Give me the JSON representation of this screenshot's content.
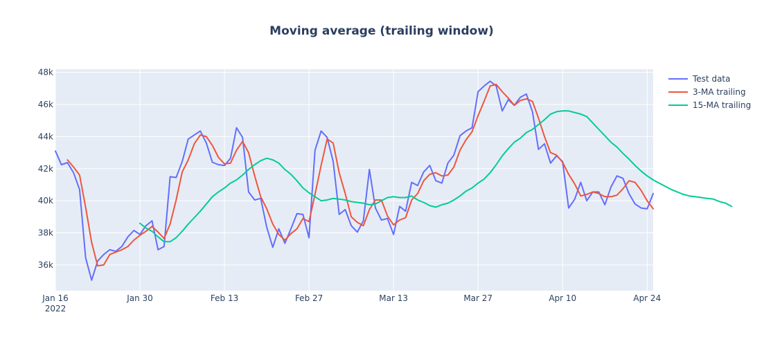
{
  "chart_data": {
    "type": "line",
    "title": "Moving average (trailing window)",
    "xlabel": "",
    "ylabel": "",
    "x_start": "2022-01-16",
    "x_range": [
      "2022-01-16",
      "2022-04-25"
    ],
    "ylim": [
      34400,
      48200
    ],
    "grid": true,
    "legend_position": "top-right",
    "x_ticks": [
      {
        "date": "2022-01-16",
        "label": "Jan 16",
        "sublabel": "2022"
      },
      {
        "date": "2022-01-30",
        "label": "Jan 30",
        "sublabel": ""
      },
      {
        "date": "2022-02-13",
        "label": "Feb 13",
        "sublabel": ""
      },
      {
        "date": "2022-02-27",
        "label": "Feb 27",
        "sublabel": ""
      },
      {
        "date": "2022-03-13",
        "label": "Mar 13",
        "sublabel": ""
      },
      {
        "date": "2022-03-27",
        "label": "Mar 27",
        "sublabel": ""
      },
      {
        "date": "2022-04-10",
        "label": "Apr 10",
        "sublabel": ""
      },
      {
        "date": "2022-04-24",
        "label": "Apr 24",
        "sublabel": ""
      }
    ],
    "y_ticks": [
      {
        "value": 36000,
        "label": "36k"
      },
      {
        "value": 38000,
        "label": "38k"
      },
      {
        "value": 40000,
        "label": "40k"
      },
      {
        "value": 42000,
        "label": "42k"
      },
      {
        "value": 44000,
        "label": "44k"
      },
      {
        "value": 46000,
        "label": "46k"
      },
      {
        "value": 48000,
        "label": "48k"
      }
    ],
    "series": [
      {
        "name": "Test data",
        "color": "#636efa",
        "start_date": "2022-01-16",
        "values": [
          43100,
          42250,
          42380,
          41750,
          40700,
          36450,
          35050,
          36250,
          36650,
          36950,
          36850,
          37150,
          37750,
          38150,
          37900,
          38450,
          38750,
          36950,
          37150,
          41500,
          41450,
          42450,
          43850,
          44100,
          44350,
          43600,
          42400,
          42250,
          42200,
          42650,
          44550,
          43950,
          40550,
          40050,
          40150,
          38350,
          37100,
          38250,
          37350,
          38250,
          39200,
          39150,
          37700,
          43150,
          44350,
          43950,
          42450,
          39150,
          39450,
          38450,
          38050,
          38750,
          41950,
          39550,
          38800,
          38900,
          37900,
          39650,
          39350,
          41150,
          40950,
          41800,
          42200,
          41250,
          41100,
          42350,
          42850,
          44050,
          44350,
          44550,
          46800,
          47150,
          47450,
          47150,
          45600,
          46300,
          45950,
          46450,
          46650,
          45550,
          43200,
          43550,
          42350,
          42800,
          42450,
          39550,
          40100,
          41150,
          40000,
          40550,
          40550,
          39750,
          40850,
          41550,
          41400,
          40450,
          39800,
          39550,
          39500,
          40450
        ]
      },
      {
        "name": "3-MA trailing",
        "color": "#ef553b",
        "start_date": "2022-01-18",
        "values": [
          42550,
          42100,
          41600,
          39600,
          37400,
          35950,
          36000,
          36650,
          36800,
          36950,
          37150,
          37550,
          37850,
          38100,
          38400,
          38050,
          37650,
          38550,
          40050,
          41800,
          42550,
          43550,
          44100,
          44000,
          43450,
          42700,
          42300,
          42350,
          43150,
          43700,
          43000,
          41550,
          40250,
          39500,
          38550,
          37900,
          37550,
          37950,
          38250,
          38900,
          38700,
          40400,
          42200,
          43850,
          43600,
          41750,
          40450,
          39000,
          38650,
          38450,
          39450,
          40050,
          40050,
          39050,
          38500,
          38800,
          38950,
          40050,
          40450,
          41250,
          41650,
          41750,
          41550,
          41600,
          42100,
          43150,
          43800,
          44300,
          45300,
          46200,
          47150,
          47250,
          46800,
          46400,
          45950,
          46250,
          46350,
          46200,
          45150,
          44000,
          43000,
          42850,
          42400,
          41650,
          41050,
          40300,
          40400,
          40550,
          40450,
          40250,
          40250,
          40350,
          40750,
          41250,
          41150,
          40650,
          40000,
          39500
        ]
      },
      {
        "name": "15-MA trailing",
        "color": "#00cc96",
        "start_date": "2022-01-30",
        "values": [
          38600,
          38300,
          38100,
          37750,
          37450,
          37450,
          37700,
          38100,
          38550,
          38950,
          39350,
          39800,
          40250,
          40550,
          40800,
          41100,
          41300,
          41600,
          41950,
          42250,
          42500,
          42650,
          42550,
          42350,
          41950,
          41650,
          41250,
          40800,
          40500,
          40250,
          40000,
          40050,
          40150,
          40100,
          40050,
          39950,
          39900,
          39850,
          39750,
          39800,
          40000,
          40200,
          40250,
          40200,
          40200,
          40300,
          40050,
          39900,
          39700,
          39600,
          39750,
          39850,
          40050,
          40300,
          40600,
          40800,
          41100,
          41350,
          41750,
          42250,
          42800,
          43250,
          43650,
          43900,
          44250,
          44450,
          44750,
          45050,
          45400,
          45550,
          45600,
          45600,
          45500,
          45400,
          45250,
          44850,
          44450,
          44050,
          43650,
          43350,
          42950,
          42600,
          42200,
          41850,
          41550,
          41300,
          41100,
          40900,
          40700,
          40550,
          40400,
          40300,
          40250,
          40200,
          40150,
          40100,
          39950,
          39850,
          39650
        ]
      }
    ]
  }
}
